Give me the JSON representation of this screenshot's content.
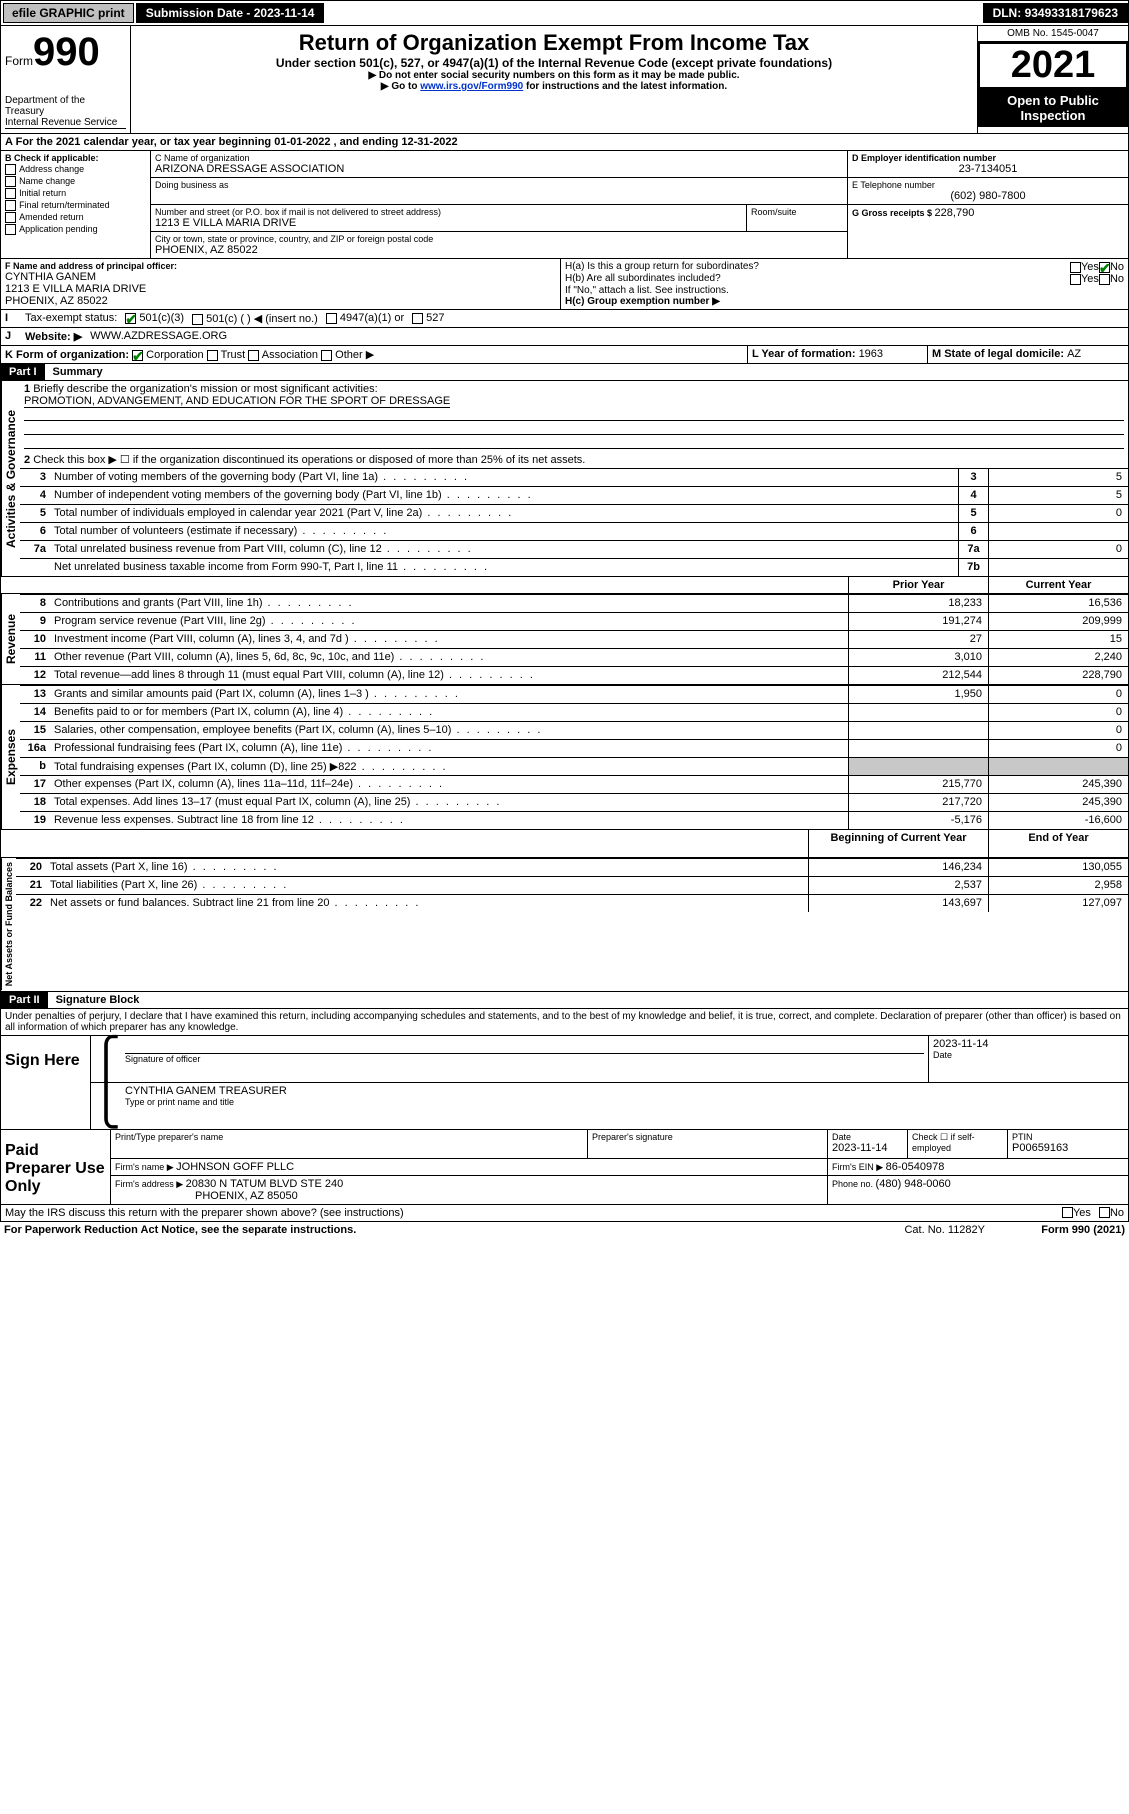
{
  "topbar": {
    "efile": "efile GRAPHIC print",
    "subdate_lbl": "Submission Date - ",
    "subdate": "2023-11-14",
    "dln_lbl": "DLN: ",
    "dln": "93493318179623"
  },
  "header": {
    "form_word": "Form",
    "form_num": "990",
    "dept": "Department of the Treasury",
    "irs": "Internal Revenue Service",
    "title": "Return of Organization Exempt From Income Tax",
    "subtitle": "Under section 501(c), 527, or 4947(a)(1) of the Internal Revenue Code (except private foundations)",
    "note1": "▶ Do not enter social security numbers on this form as it may be made public.",
    "note2_pre": "▶ Go to ",
    "note2_link": "www.irs.gov/Form990",
    "note2_post": " for instructions and the latest information.",
    "omb": "OMB No. 1545-0047",
    "year": "2021",
    "inspect": "Open to Public Inspection"
  },
  "line_a": {
    "text_pre": "For the 2021 calendar year, or tax year beginning ",
    "begin": "01-01-2022",
    "mid": "   , and ending ",
    "end": "12-31-2022"
  },
  "box_b": {
    "title": "B Check if applicable:",
    "items": [
      "Address change",
      "Name change",
      "Initial return",
      "Final return/terminated",
      "Amended return",
      "Application pending"
    ]
  },
  "box_c": {
    "lbl_name": "C Name of organization",
    "name": "ARIZONA DRESSAGE ASSOCIATION",
    "lbl_dba": "Doing business as",
    "lbl_street": "Number and street (or P.O. box if mail is not delivered to street address)",
    "lbl_room": "Room/suite",
    "street": "1213 E VILLA MARIA DRIVE",
    "lbl_city": "City or town, state or province, country, and ZIP or foreign postal code",
    "city": "PHOENIX, AZ  85022"
  },
  "box_d": {
    "lbl": "D Employer identification number",
    "val": "23-7134051"
  },
  "box_e": {
    "lbl": "E Telephone number",
    "val": "(602) 980-7800"
  },
  "box_g": {
    "lbl": "G Gross receipts $ ",
    "val": "228,790"
  },
  "box_f": {
    "lbl": "F Name and address of principal officer:",
    "name": "CYNTHIA GANEM",
    "street": "1213 E VILLA MARIA DRIVE",
    "city": "PHOENIX, AZ  85022"
  },
  "box_h": {
    "a_lbl": "H(a)  Is this a group return for subordinates?",
    "b_lbl": "H(b)  Are all subordinates included?",
    "note": "If \"No,\" attach a list. See instructions.",
    "c_lbl": "H(c)  Group exemption number ▶",
    "yes": "Yes",
    "no": "No"
  },
  "line_i": {
    "lbl": "Tax-exempt status:",
    "opts": [
      "501(c)(3)",
      "501(c) (  ) ◀ (insert no.)",
      "4947(a)(1) or",
      "527"
    ]
  },
  "line_j": {
    "lbl": "Website: ▶",
    "val": "WWW.AZDRESSAGE.ORG"
  },
  "line_k": {
    "lbl": "K Form of organization:",
    "opts": [
      "Corporation",
      "Trust",
      "Association",
      "Other ▶"
    ]
  },
  "line_l": {
    "lbl": "L Year of formation: ",
    "val": "1963"
  },
  "line_m": {
    "lbl": "M State of legal domicile: ",
    "val": "AZ"
  },
  "part1": {
    "hdr": "Part I",
    "title": "Summary"
  },
  "sec_gov": {
    "label": "Activities & Governance",
    "l1_lbl": "Briefly describe the organization's mission or most significant activities:",
    "l1_val": "PROMOTION, ADVANGEMENT, AND EDUCATION FOR THE SPORT OF DRESSAGE",
    "l2": "Check this box ▶ ☐  if the organization discontinued its operations or disposed of more than 25% of its net assets.",
    "lines": [
      {
        "n": "3",
        "t": "Number of voting members of the governing body (Part VI, line 1a)",
        "b": "3",
        "v": "5"
      },
      {
        "n": "4",
        "t": "Number of independent voting members of the governing body (Part VI, line 1b)",
        "b": "4",
        "v": "5"
      },
      {
        "n": "5",
        "t": "Total number of individuals employed in calendar year 2021 (Part V, line 2a)",
        "b": "5",
        "v": "0"
      },
      {
        "n": "6",
        "t": "Total number of volunteers (estimate if necessary)",
        "b": "6",
        "v": ""
      },
      {
        "n": "7a",
        "t": "Total unrelated business revenue from Part VIII, column (C), line 12",
        "b": "7a",
        "v": "0"
      },
      {
        "n": "",
        "t": "Net unrelated business taxable income from Form 990-T, Part I, line 11",
        "b": "7b",
        "v": ""
      }
    ]
  },
  "col_hdr": {
    "prior": "Prior Year",
    "current": "Current Year"
  },
  "sec_rev": {
    "label": "Revenue",
    "lines": [
      {
        "n": "8",
        "t": "Contributions and grants (Part VIII, line 1h)",
        "p": "18,233",
        "c": "16,536"
      },
      {
        "n": "9",
        "t": "Program service revenue (Part VIII, line 2g)",
        "p": "191,274",
        "c": "209,999"
      },
      {
        "n": "10",
        "t": "Investment income (Part VIII, column (A), lines 3, 4, and 7d )",
        "p": "27",
        "c": "15"
      },
      {
        "n": "11",
        "t": "Other revenue (Part VIII, column (A), lines 5, 6d, 8c, 9c, 10c, and 11e)",
        "p": "3,010",
        "c": "2,240"
      },
      {
        "n": "12",
        "t": "Total revenue—add lines 8 through 11 (must equal Part VIII, column (A), line 12)",
        "p": "212,544",
        "c": "228,790"
      }
    ]
  },
  "sec_exp": {
    "label": "Expenses",
    "lines": [
      {
        "n": "13",
        "t": "Grants and similar amounts paid (Part IX, column (A), lines 1–3 )",
        "p": "1,950",
        "c": "0"
      },
      {
        "n": "14",
        "t": "Benefits paid to or for members (Part IX, column (A), line 4)",
        "p": "",
        "c": "0"
      },
      {
        "n": "15",
        "t": "Salaries, other compensation, employee benefits (Part IX, column (A), lines 5–10)",
        "p": "",
        "c": "0"
      },
      {
        "n": "16a",
        "t": "Professional fundraising fees (Part IX, column (A), line 11e)",
        "p": "",
        "c": "0"
      },
      {
        "n": "b",
        "t": "Total fundraising expenses (Part IX, column (D), line 25) ▶822",
        "p": "shade",
        "c": "shade"
      },
      {
        "n": "17",
        "t": "Other expenses (Part IX, column (A), lines 11a–11d, 11f–24e)",
        "p": "215,770",
        "c": "245,390"
      },
      {
        "n": "18",
        "t": "Total expenses. Add lines 13–17 (must equal Part IX, column (A), line 25)",
        "p": "217,720",
        "c": "245,390"
      },
      {
        "n": "19",
        "t": "Revenue less expenses. Subtract line 18 from line 12",
        "p": "-5,176",
        "c": "-16,600"
      }
    ]
  },
  "col_hdr2": {
    "prior": "Beginning of Current Year",
    "current": "End of Year"
  },
  "sec_net": {
    "label": "Net Assets or Fund Balances",
    "lines": [
      {
        "n": "20",
        "t": "Total assets (Part X, line 16)",
        "p": "146,234",
        "c": "130,055"
      },
      {
        "n": "21",
        "t": "Total liabilities (Part X, line 26)",
        "p": "2,537",
        "c": "2,958"
      },
      {
        "n": "22",
        "t": "Net assets or fund balances. Subtract line 21 from line 20",
        "p": "143,697",
        "c": "127,097"
      }
    ]
  },
  "part2": {
    "hdr": "Part II",
    "title": "Signature Block"
  },
  "perjury": "Under penalties of perjury, I declare that I have examined this return, including accompanying schedules and statements, and to the best of my knowledge and belief, it is true, correct, and complete. Declaration of preparer (other than officer) is based on all information of which preparer has any knowledge.",
  "sign": {
    "lbl": "Sign Here",
    "sig_lbl": "Signature of officer",
    "date_lbl": "Date",
    "date": "2023-11-14",
    "name": "CYNTHIA GANEM  TREASURER",
    "name_lbl": "Type or print name and title"
  },
  "preparer": {
    "lbl": "Paid Preparer Use Only",
    "col1": "Print/Type preparer's name",
    "col2": "Preparer's signature",
    "col3_lbl": "Date",
    "col3": "2023-11-14",
    "col4_lbl": "Check ☐ if self-employed",
    "col5_lbl": "PTIN",
    "col5": "P00659163",
    "firm_name_lbl": "Firm's name    ▶ ",
    "firm_name": "JOHNSON GOFF PLLC",
    "firm_ein_lbl": "Firm's EIN ▶ ",
    "firm_ein": "86-0540978",
    "firm_addr_lbl": "Firm's address ▶ ",
    "firm_addr1": "20830 N TATUM BLVD STE 240",
    "firm_addr2": "PHOENIX, AZ  85050",
    "phone_lbl": "Phone no. ",
    "phone": "(480) 948-0060"
  },
  "footer": {
    "discuss": "May the IRS discuss this return with the preparer shown above? (see instructions)",
    "yes": "Yes",
    "no": "No",
    "paperwork": "For Paperwork Reduction Act Notice, see the separate instructions.",
    "cat": "Cat. No. 11282Y",
    "form": "Form 990 (2021)"
  }
}
